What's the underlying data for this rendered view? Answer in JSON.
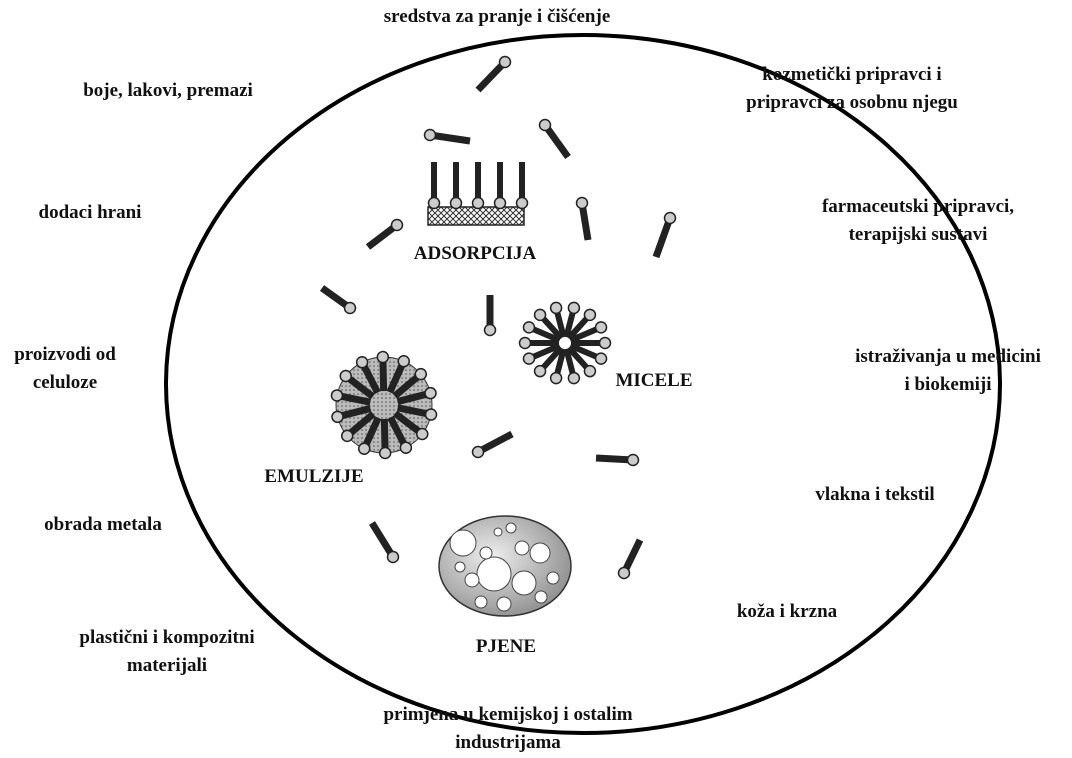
{
  "applications": [
    {
      "lines": [
        "sredstva za pranje i čišćenje"
      ]
    },
    {
      "lines": [
        "boje, lakovi, premazi"
      ]
    },
    {
      "lines": [
        "kozmetički pripravci i",
        "pripravci za osobnu njegu"
      ]
    },
    {
      "lines": [
        "dodaci hrani"
      ]
    },
    {
      "lines": [
        "farmaceutski pripravci,",
        "terapijski sustavi"
      ]
    },
    {
      "lines": [
        "proizvodi od",
        "celuloze"
      ]
    },
    {
      "lines": [
        "istraživanja u medicini",
        "i biokemiji"
      ]
    },
    {
      "lines": [
        "vlakna i tekstil"
      ]
    },
    {
      "lines": [
        "obrada metala"
      ]
    },
    {
      "lines": [
        "koža i krzna"
      ]
    },
    {
      "lines": [
        "plastični i kompozitni",
        "materijali"
      ]
    },
    {
      "lines": [
        "primjena u kemijskoj i ostalim",
        "industrijama"
      ]
    }
  ],
  "phenomena": [
    "ADSORPCIJA",
    "MICELE",
    "EMULZIJE",
    "PJENE"
  ]
}
